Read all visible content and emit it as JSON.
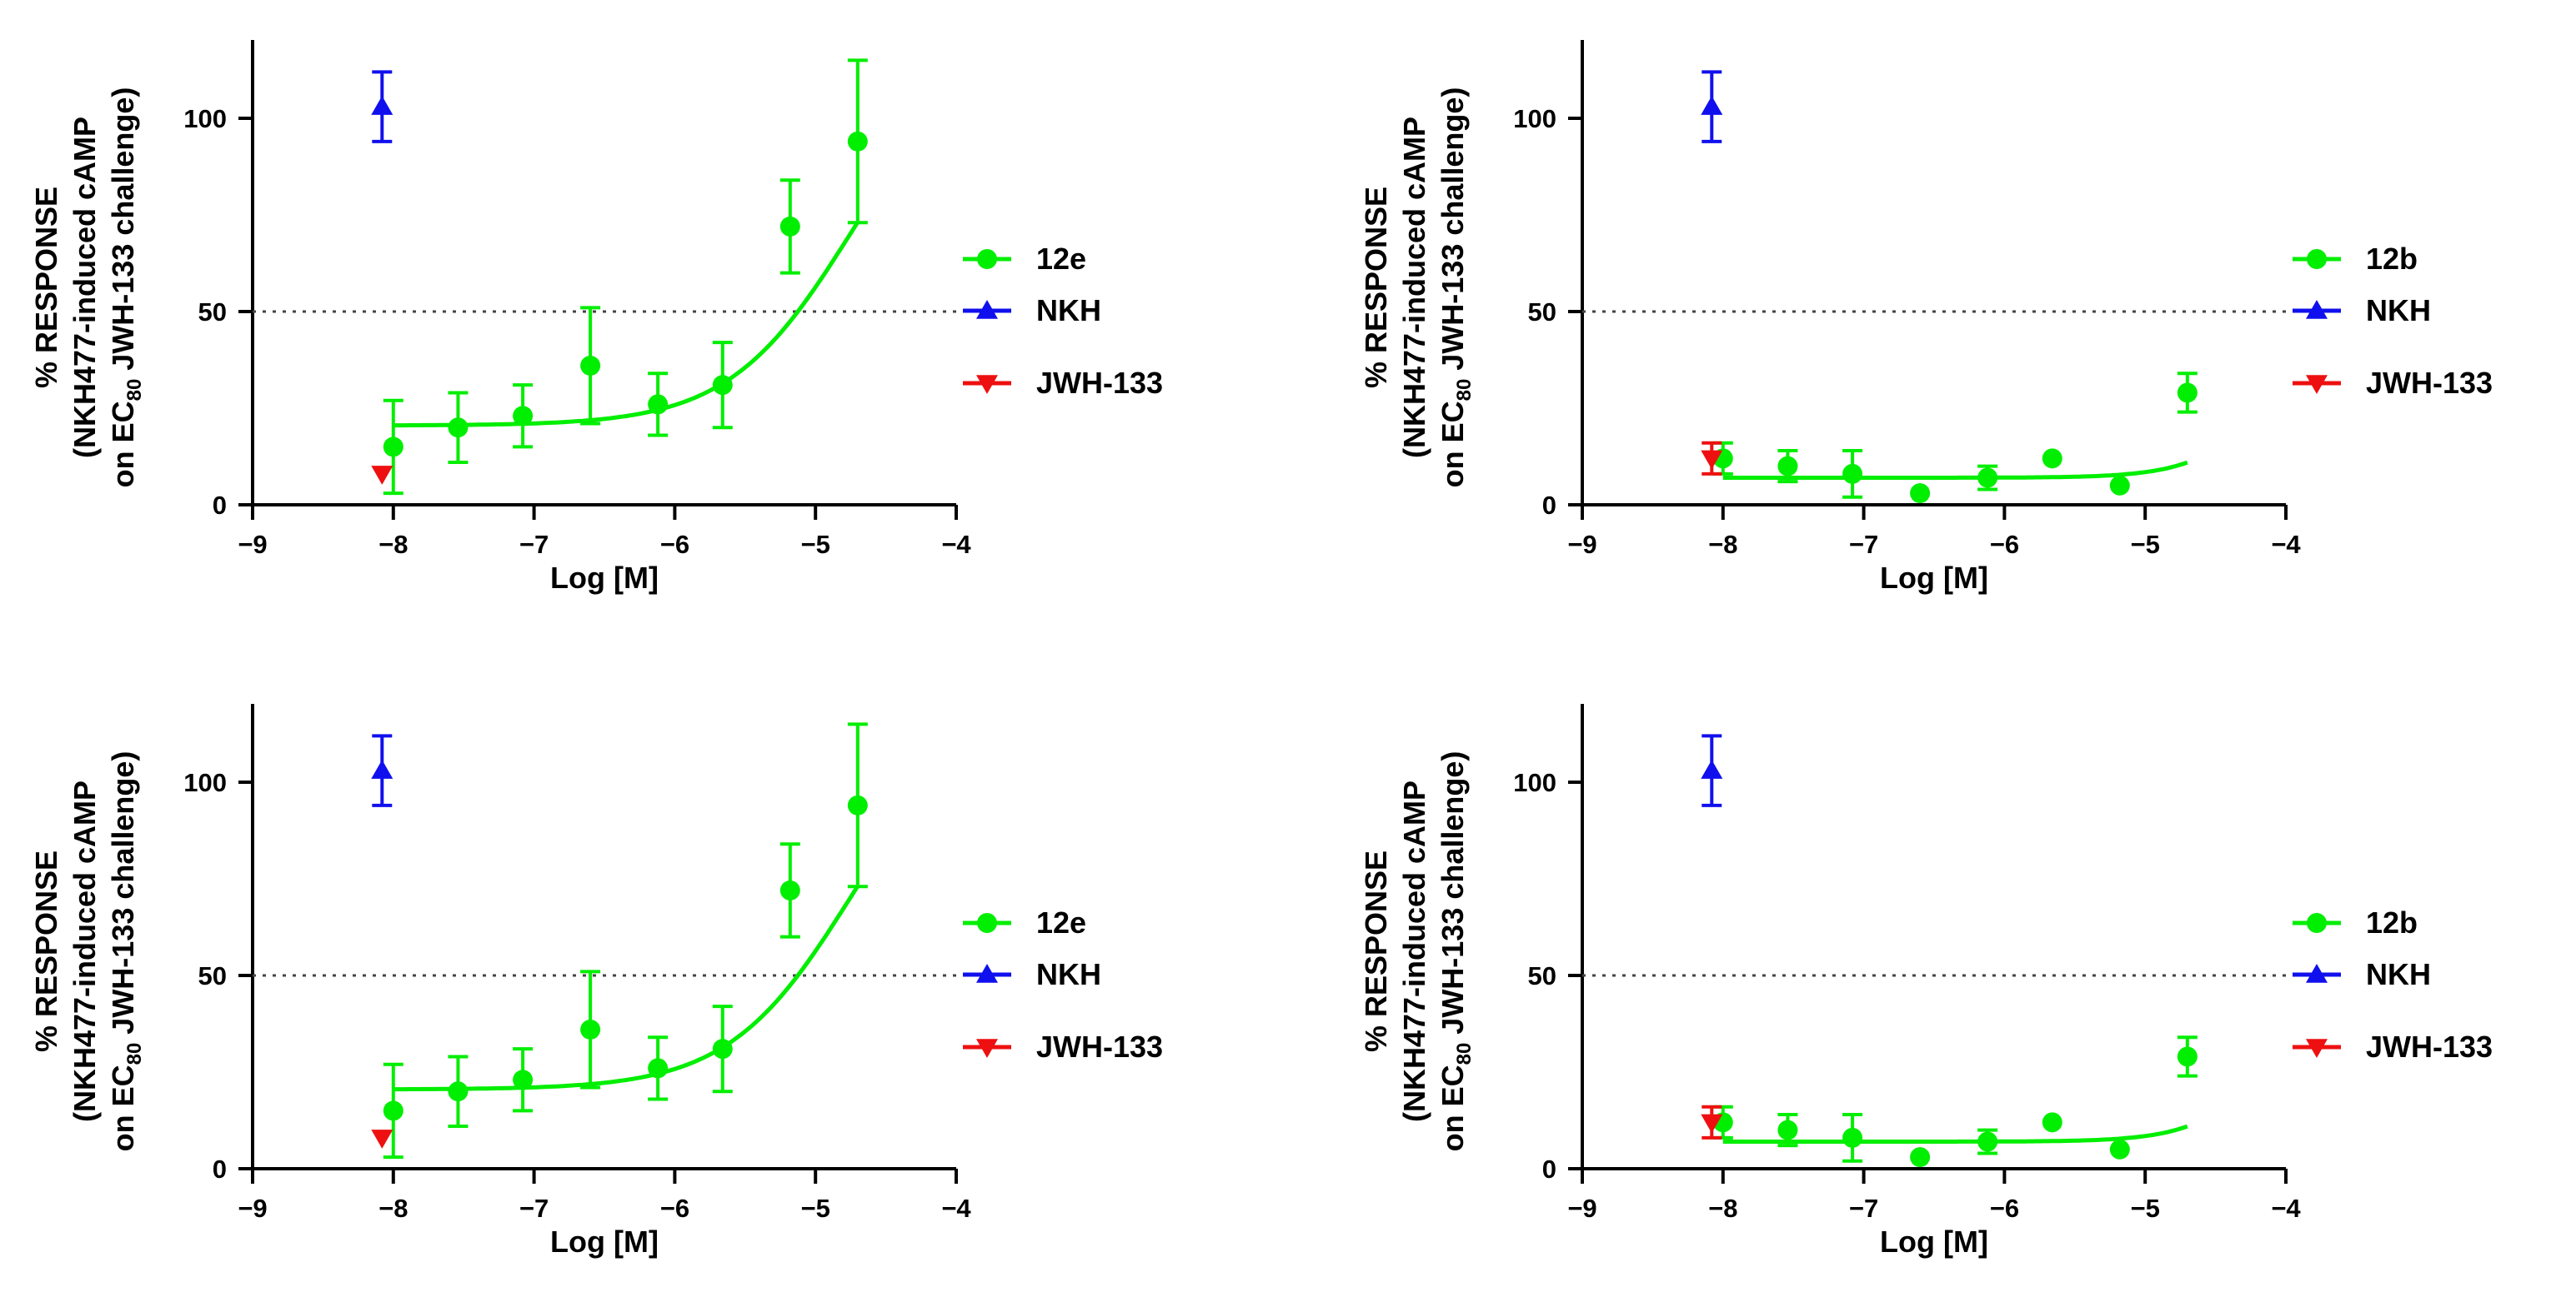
{
  "colors": {
    "compound": "#00ee00",
    "nkh": "#1010ee",
    "jwh": "#ee1010",
    "axis": "#000000",
    "reference_line": "#444444"
  },
  "icons": {
    "compound": "circle-marker-icon",
    "nkh": "triangle-up-marker-icon",
    "jwh": "triangle-down-marker-icon"
  },
  "chart_data": [
    {
      "type": "scatter",
      "panel": "top-left",
      "compound": "12e",
      "xlabel": "Log [M]",
      "ylabel_line1": "% RESPONSE",
      "ylabel_line2": "(NKH477-induced cAMP",
      "ylabel_line3_prefix": "on EC",
      "ylabel_line3_sub": "80",
      "ylabel_line3_suffix": " JWH-133 challenge)",
      "xlim": [
        -9,
        -4
      ],
      "ylim": [
        0,
        120
      ],
      "x_ticks": [
        -9,
        -8,
        -7,
        -6,
        -5,
        -4
      ],
      "x_tick_labels": [
        "−9",
        "−8",
        "−7",
        "−6",
        "−5",
        "−4"
      ],
      "y_ticks": [
        0,
        50,
        100
      ],
      "y_tick_labels": [
        "0",
        "50",
        "100"
      ],
      "reference_line_y": 50,
      "legend": [
        "12e",
        "NKH",
        "JWH-133"
      ],
      "series": [
        {
          "name": "12e",
          "marker": "circle",
          "x": [
            -8.0,
            -7.54,
            -7.08,
            -6.6,
            -6.12,
            -5.66,
            -5.18,
            -4.7
          ],
          "y": [
            15,
            20,
            23,
            36,
            26,
            31,
            72,
            94
          ],
          "err": [
            12,
            9,
            8,
            15,
            8,
            11,
            12,
            21
          ]
        },
        {
          "name": "NKH",
          "marker": "triangle-up",
          "x": [
            -8.08
          ],
          "y": [
            103
          ],
          "err": [
            9
          ]
        },
        {
          "name": "JWH-133",
          "marker": "triangle-down",
          "x": [
            -8.08
          ],
          "y": [
            8
          ],
          "err": [
            0
          ]
        }
      ],
      "fit": {
        "bottom": 20.5,
        "top": 120,
        "log_ec50": -4.75,
        "hill": 1.0,
        "x_range": [
          -8.0,
          -4.7
        ]
      }
    },
    {
      "type": "scatter",
      "panel": "top-right",
      "compound": "12b",
      "xlabel": "Log [M]",
      "ylabel_line1": "% RESPONSE",
      "ylabel_line2": "(NKH477-induced cAMP",
      "ylabel_line3_prefix": "on EC",
      "ylabel_line3_sub": "80",
      "ylabel_line3_suffix": " JWH-133 challenge)",
      "xlim": [
        -9,
        -4
      ],
      "ylim": [
        0,
        120
      ],
      "x_ticks": [
        -9,
        -8,
        -7,
        -6,
        -5,
        -4
      ],
      "x_tick_labels": [
        "−9",
        "−8",
        "−7",
        "−6",
        "−5",
        "−4"
      ],
      "y_ticks": [
        0,
        50,
        100
      ],
      "y_tick_labels": [
        "0",
        "50",
        "100"
      ],
      "reference_line_y": 50,
      "legend": [
        "12b",
        "NKH",
        "JWH-133"
      ],
      "series": [
        {
          "name": "12b",
          "marker": "circle",
          "x": [
            -8.0,
            -7.54,
            -7.08,
            -6.6,
            -6.12,
            -5.66,
            -5.18,
            -4.7
          ],
          "y": [
            12,
            10,
            8,
            3,
            7,
            12,
            5,
            29
          ],
          "err": [
            4,
            4,
            6,
            0,
            3,
            0,
            0,
            5
          ]
        },
        {
          "name": "NKH",
          "marker": "triangle-up",
          "x": [
            -8.08
          ],
          "y": [
            103
          ],
          "err": [
            9
          ]
        },
        {
          "name": "JWH-133",
          "marker": "triangle-down",
          "x": [
            -8.08
          ],
          "y": [
            12
          ],
          "err": [
            4
          ]
        }
      ],
      "fit": {
        "bottom": 7,
        "top": 100,
        "log_ec50": -3.8,
        "hill": 1.5,
        "x_range": [
          -8.0,
          -4.7
        ]
      }
    },
    {
      "type": "scatter",
      "panel": "bottom-left",
      "compound": "12e",
      "xlabel": "Log [M]",
      "ylabel_line1": "% RESPONSE",
      "ylabel_line2": "(NKH477-induced cAMP",
      "ylabel_line3_prefix": "on EC",
      "ylabel_line3_sub": "80",
      "ylabel_line3_suffix": " JWH-133 challenge)",
      "xlim": [
        -9,
        -4
      ],
      "ylim": [
        0,
        120
      ],
      "x_ticks": [
        -9,
        -8,
        -7,
        -6,
        -5,
        -4
      ],
      "x_tick_labels": [
        "−9",
        "−8",
        "−7",
        "−6",
        "−5",
        "−4"
      ],
      "y_ticks": [
        0,
        50,
        100
      ],
      "y_tick_labels": [
        "0",
        "50",
        "100"
      ],
      "reference_line_y": 50,
      "legend": [
        "12e",
        "NKH",
        "JWH-133"
      ],
      "series": [
        {
          "name": "12e",
          "marker": "circle",
          "x": [
            -8.0,
            -7.54,
            -7.08,
            -6.6,
            -6.12,
            -5.66,
            -5.18,
            -4.7
          ],
          "y": [
            15,
            20,
            23,
            36,
            26,
            31,
            72,
            94
          ],
          "err": [
            12,
            9,
            8,
            15,
            8,
            11,
            12,
            21
          ]
        },
        {
          "name": "NKH",
          "marker": "triangle-up",
          "x": [
            -8.08
          ],
          "y": [
            103
          ],
          "err": [
            9
          ]
        },
        {
          "name": "JWH-133",
          "marker": "triangle-down",
          "x": [
            -8.08
          ],
          "y": [
            8
          ],
          "err": [
            0
          ]
        }
      ],
      "fit": {
        "bottom": 20.5,
        "top": 120,
        "log_ec50": -4.75,
        "hill": 1.0,
        "x_range": [
          -8.0,
          -4.7
        ]
      }
    },
    {
      "type": "scatter",
      "panel": "bottom-right",
      "compound": "12b",
      "xlabel": "Log [M]",
      "ylabel_line1": "% RESPONSE",
      "ylabel_line2": "(NKH477-induced cAMP",
      "ylabel_line3_prefix": "on EC",
      "ylabel_line3_sub": "80",
      "ylabel_line3_suffix": " JWH-133 challenge)",
      "xlim": [
        -9,
        -4
      ],
      "ylim": [
        0,
        120
      ],
      "x_ticks": [
        -9,
        -8,
        -7,
        -6,
        -5,
        -4
      ],
      "x_tick_labels": [
        "−9",
        "−8",
        "−7",
        "−6",
        "−5",
        "−4"
      ],
      "y_ticks": [
        0,
        50,
        100
      ],
      "y_tick_labels": [
        "0",
        "50",
        "100"
      ],
      "reference_line_y": 50,
      "legend": [
        "12b",
        "NKH",
        "JWH-133"
      ],
      "series": [
        {
          "name": "12b",
          "marker": "circle",
          "x": [
            -8.0,
            -7.54,
            -7.08,
            -6.6,
            -6.12,
            -5.66,
            -5.18,
            -4.7
          ],
          "y": [
            12,
            10,
            8,
            3,
            7,
            12,
            5,
            29
          ],
          "err": [
            4,
            4,
            6,
            0,
            3,
            0,
            0,
            5
          ]
        },
        {
          "name": "NKH",
          "marker": "triangle-up",
          "x": [
            -8.08
          ],
          "y": [
            103
          ],
          "err": [
            9
          ]
        },
        {
          "name": "JWH-133",
          "marker": "triangle-down",
          "x": [
            -8.08
          ],
          "y": [
            12
          ],
          "err": [
            4
          ]
        }
      ],
      "fit": {
        "bottom": 7,
        "top": 100,
        "log_ec50": -3.8,
        "hill": 1.5,
        "x_range": [
          -8.0,
          -4.7
        ]
      }
    }
  ]
}
